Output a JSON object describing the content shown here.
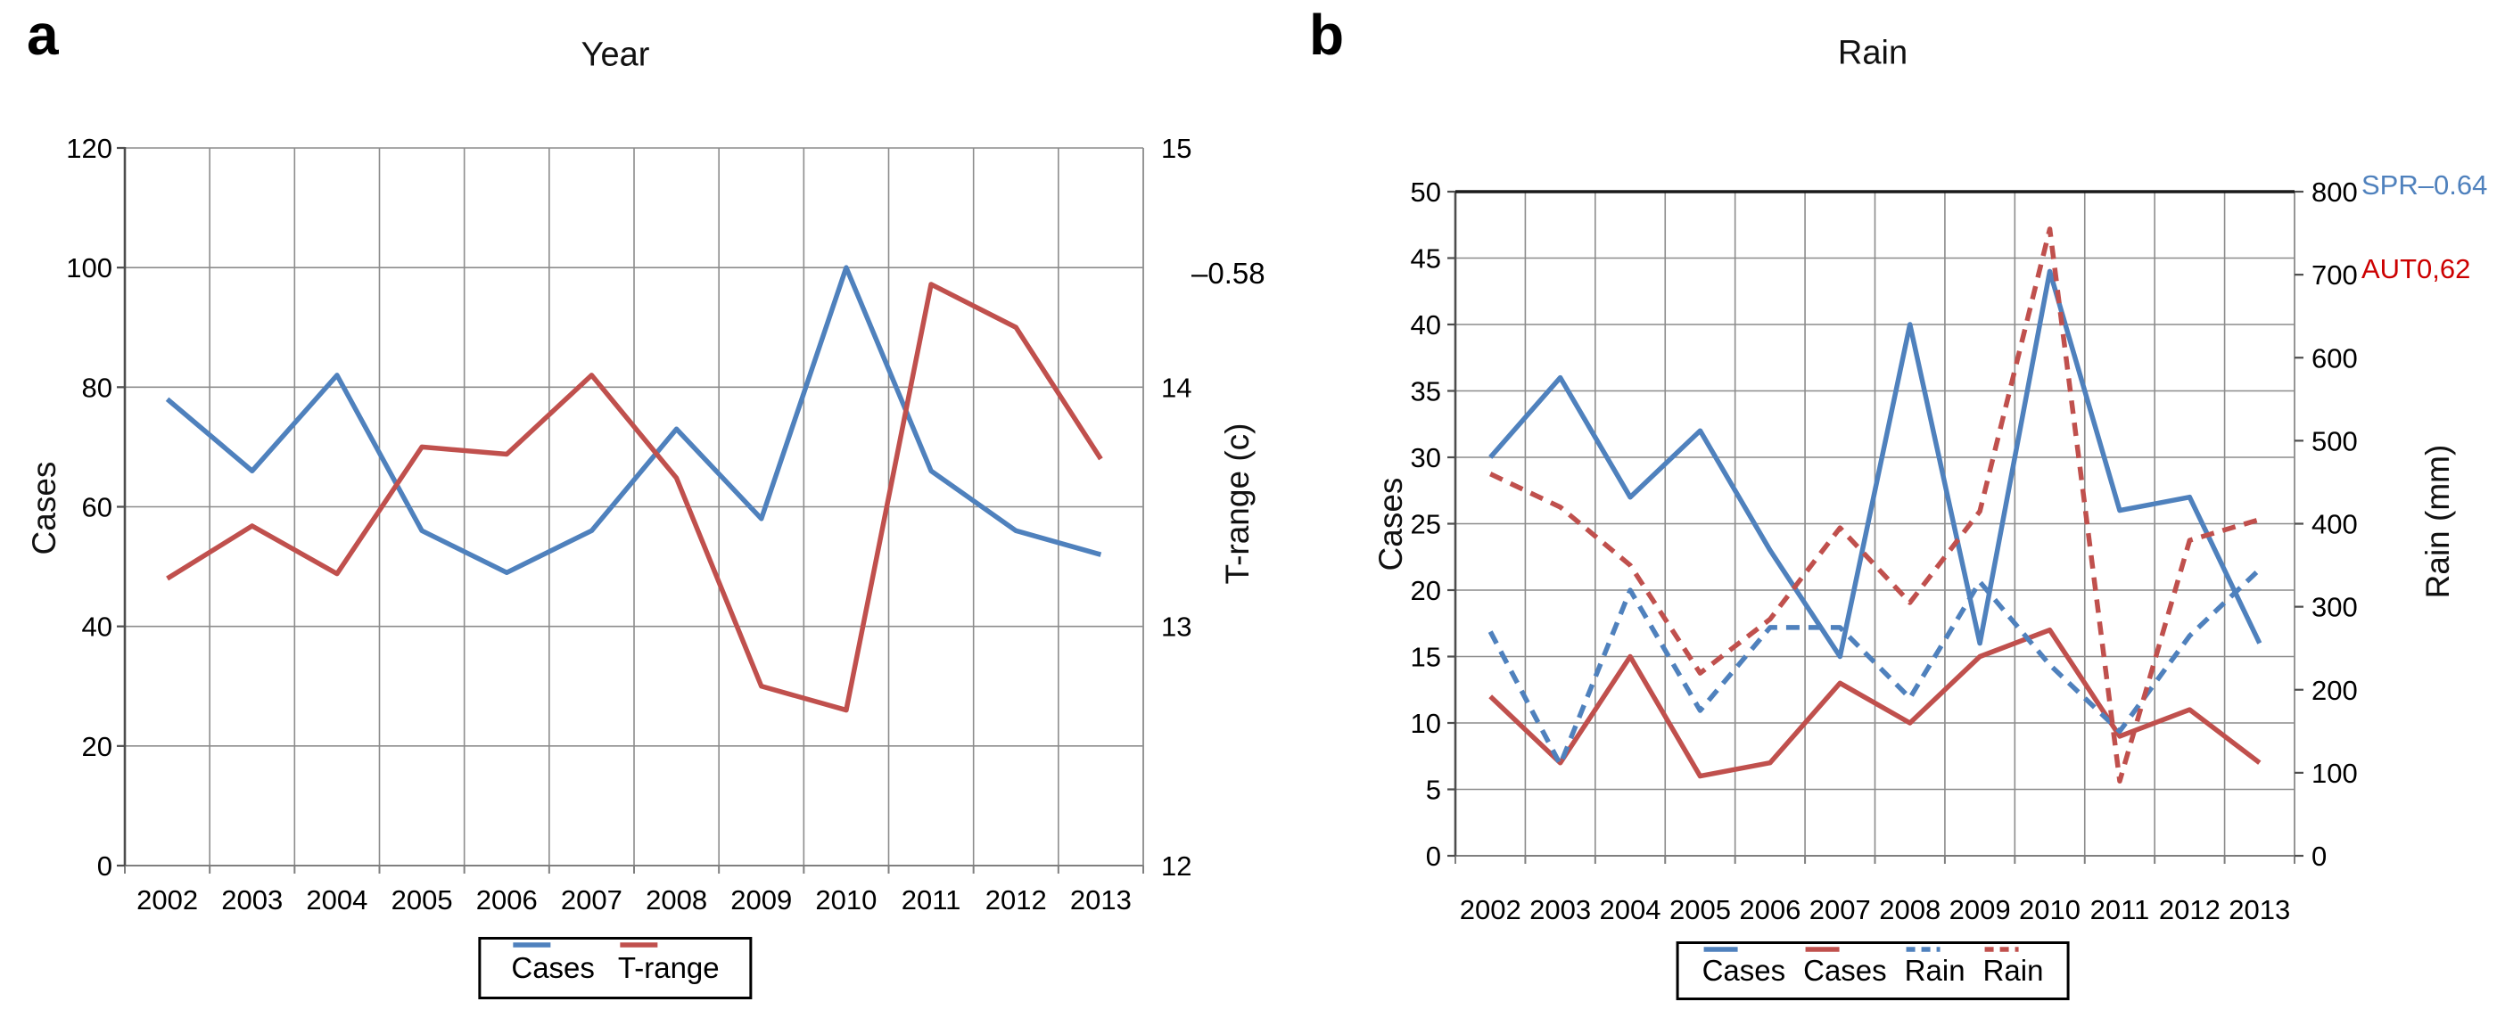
{
  "figure": {
    "panel_a_letter": "a",
    "panel_b_letter": "b"
  },
  "colors": {
    "series_blue": "#4F81BD",
    "series_red": "#C0504D",
    "annotation_blue": "#4F81BD",
    "annotation_red": "#CC0000",
    "grid": "#8C8C8C",
    "axis": "#4D4D4D",
    "top_border_b": "#1A1A1A"
  },
  "chart_data": [
    {
      "id": "a",
      "type": "line",
      "panel_letter": "a",
      "title": "Year",
      "categories": [
        "2002",
        "2003",
        "2004",
        "2005",
        "2006",
        "2007",
        "2008",
        "2009",
        "2010",
        "2011",
        "2012",
        "2013"
      ],
      "ylabel_left": "Cases",
      "ylabel_right": "T-range (c)",
      "left_axis": {
        "min": 0,
        "max": 120,
        "step": 20,
        "ticks": [
          0,
          20,
          40,
          60,
          80,
          100,
          120
        ]
      },
      "right_axis": {
        "min": 12,
        "max": 15,
        "step": 1,
        "ticks": [
          12,
          13,
          14,
          15
        ]
      },
      "grid": "on",
      "legend_position": "bottom",
      "annotation": {
        "text": "–0.58",
        "color": "#000000"
      },
      "series": [
        {
          "name": "Cases",
          "axis": "left",
          "style": "solid",
          "color": "#4F81BD",
          "values": [
            78,
            66,
            82,
            56,
            49,
            56,
            73,
            58,
            100,
            66,
            56,
            52
          ]
        },
        {
          "name": "T-range",
          "axis": "right",
          "style": "solid",
          "color": "#C0504D",
          "values": [
            13.2,
            13.42,
            13.22,
            13.75,
            13.72,
            14.05,
            13.62,
            12.75,
            12.65,
            14.43,
            14.25,
            13.7
          ]
        }
      ]
    },
    {
      "id": "b",
      "type": "line",
      "panel_letter": "b",
      "title": "Rain",
      "categories": [
        "2002",
        "2003",
        "2004",
        "2005",
        "2006",
        "2007",
        "2008",
        "2009",
        "2010",
        "2011",
        "2012",
        "2013"
      ],
      "ylabel_left": "Cases",
      "ylabel_right": "Rain (mm)",
      "left_axis": {
        "min": 0,
        "max": 50,
        "step": 5,
        "ticks": [
          0,
          5,
          10,
          15,
          20,
          25,
          30,
          35,
          40,
          45,
          50
        ]
      },
      "right_axis": {
        "min": 0,
        "max": 800,
        "step": 100,
        "ticks": [
          0,
          100,
          200,
          300,
          400,
          500,
          600,
          700,
          800
        ]
      },
      "grid": "on",
      "legend_position": "bottom",
      "annotations": [
        {
          "text": "SPR–0.64",
          "color": "#4F81BD"
        },
        {
          "text": "AUT0,62",
          "color": "#CC0000"
        }
      ],
      "series": [
        {
          "name": "Cases",
          "axis": "left",
          "style": "solid",
          "color": "#4F81BD",
          "values": [
            30,
            36,
            27,
            32,
            23,
            15,
            40,
            16,
            44,
            26,
            27,
            16
          ]
        },
        {
          "name": "Cases",
          "axis": "left",
          "style": "solid",
          "color": "#C0504D",
          "values": [
            12,
            7,
            15,
            6,
            7,
            13,
            10,
            15,
            17,
            9,
            11,
            7
          ]
        },
        {
          "name": "Rain",
          "axis": "right",
          "style": "dashed",
          "color": "#4F81BD",
          "values": [
            270,
            110,
            320,
            175,
            275,
            275,
            190,
            330,
            230,
            150,
            265,
            345
          ]
        },
        {
          "name": "Rain",
          "axis": "right",
          "style": "dashed",
          "color": "#C0504D",
          "values": [
            460,
            420,
            350,
            220,
            285,
            395,
            305,
            415,
            755,
            90,
            380,
            405
          ]
        }
      ]
    }
  ]
}
